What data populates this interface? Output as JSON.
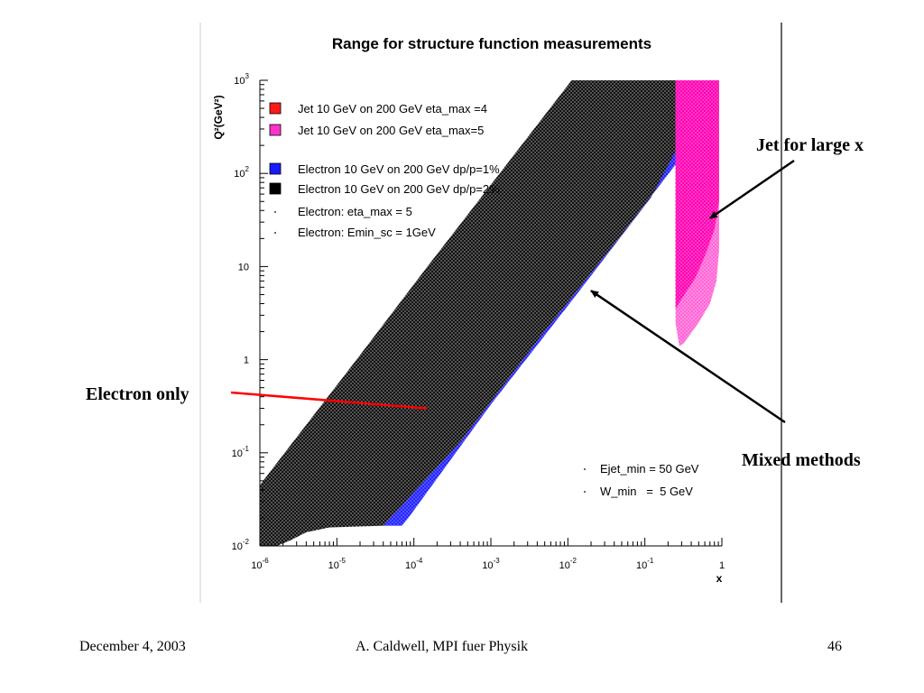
{
  "chart_data": {
    "type": "area",
    "title": "Range for structure function measurements",
    "xlabel": "x",
    "ylabel": "Q²(GeV²)",
    "xscale": "log",
    "yscale": "log",
    "xlim": [
      1e-06,
      1
    ],
    "ylim": [
      0.01,
      1000
    ],
    "grid": false,
    "legend_position": "top-left",
    "x_ticks": [
      {
        "value": 1e-06,
        "base": "10",
        "exp": "-6"
      },
      {
        "value": 1e-05,
        "base": "10",
        "exp": "-5"
      },
      {
        "value": 0.0001,
        "base": "10",
        "exp": "-4"
      },
      {
        "value": 0.001,
        "base": "10",
        "exp": "-3"
      },
      {
        "value": 0.01,
        "base": "10",
        "exp": "-2"
      },
      {
        "value": 0.1,
        "base": "10",
        "exp": "-1"
      },
      {
        "value": 1,
        "base": "1",
        "exp": ""
      }
    ],
    "y_ticks": [
      {
        "value": 0.01,
        "base": "10",
        "exp": "-2"
      },
      {
        "value": 0.1,
        "base": "10",
        "exp": "-1"
      },
      {
        "value": 1,
        "base": "1",
        "exp": ""
      },
      {
        "value": 10,
        "base": "10",
        "exp": ""
      },
      {
        "value": 100,
        "base": "10",
        "exp": "2"
      },
      {
        "value": 1000,
        "base": "10",
        "exp": "3"
      }
    ],
    "legend": [
      {
        "label": "Jet 10 GeV on 200 GeV eta_max =4",
        "color": "#ff1a1a",
        "marker": "box"
      },
      {
        "label": "Jet 10 GeV on 200 GeV eta_max=5",
        "color": "#ff33cc",
        "marker": "box"
      },
      {
        "label": "Electron 10 GeV on 200 GeV dp/p=1%",
        "color": "#1a1aff",
        "marker": "box"
      },
      {
        "label": "Electron 10 GeV on 200 GeV dp/p=2%",
        "color": "#000000",
        "marker": "box"
      },
      {
        "label": "Electron: eta_max = 5",
        "color": "#000000",
        "marker": "dot"
      },
      {
        "label": "Electron: Emin_sc = 1GeV",
        "color": "#000000",
        "marker": "dot"
      }
    ],
    "cuts_legend": [
      {
        "label": "Ejet_min = 50 GeV"
      },
      {
        "label": "W_min   =  5 GeV"
      }
    ],
    "regions": [
      {
        "id": "electron-dp-2pct",
        "color": "#1a1a1a",
        "polygon": [
          [
            1e-06,
            0.01
          ],
          [
            1.66e-06,
            0.01
          ],
          [
            2.5e-06,
            0.0115
          ],
          [
            4e-06,
            0.014
          ],
          [
            8e-06,
            0.0158
          ],
          [
            4e-05,
            0.0165
          ],
          [
            0.0004,
            0.13
          ],
          [
            0.0045,
            1.8
          ],
          [
            0.05,
            22
          ],
          [
            0.25,
            125
          ],
          [
            0.25,
            1000
          ],
          [
            0.0112,
            1000
          ],
          [
            0.0013,
            100
          ],
          [
            0.00015,
            10
          ],
          [
            1.8e-05,
            1
          ],
          [
            2.1e-06,
            0.1
          ],
          [
            1e-06,
            0.045
          ]
        ]
      },
      {
        "id": "electron-dp-1pct",
        "color": "#2b2bff",
        "polygon": [
          [
            4e-05,
            0.0165
          ],
          [
            7e-05,
            0.0165
          ],
          [
            8.5e-05,
            0.02
          ],
          [
            0.001,
            0.33
          ],
          [
            0.011,
            4.2
          ],
          [
            0.12,
            55
          ],
          [
            0.3,
            230
          ],
          [
            0.3,
            160
          ],
          [
            0.25,
            125
          ],
          [
            0.05,
            22
          ],
          [
            0.0045,
            1.8
          ],
          [
            0.0004,
            0.13
          ]
        ]
      },
      {
        "id": "jet-eta-5",
        "color": "#ff77dd",
        "polygon": [
          [
            0.25,
            1000
          ],
          [
            0.92,
            1000
          ],
          [
            0.92,
            15
          ],
          [
            0.85,
            7
          ],
          [
            0.7,
            4
          ],
          [
            0.5,
            2.5
          ],
          [
            0.32,
            1.5
          ],
          [
            0.28,
            1.4
          ],
          [
            0.25,
            2.5
          ]
        ]
      },
      {
        "id": "jet-eta-4",
        "color": "#ff00bb",
        "polygon": [
          [
            0.25,
            1000
          ],
          [
            0.92,
            1000
          ],
          [
            0.92,
            50
          ],
          [
            0.8,
            25
          ],
          [
            0.6,
            13
          ],
          [
            0.45,
            7.5
          ],
          [
            0.3,
            4.5
          ],
          [
            0.25,
            3.5
          ]
        ]
      }
    ],
    "annotations": [
      {
        "id": "jet-large-x",
        "text": "Jet for large x",
        "target": [
          0.7,
          33
        ]
      },
      {
        "id": "mixed-methods",
        "text": "Mixed methods",
        "target": [
          0.02,
          5.5
        ]
      },
      {
        "id": "electron-only",
        "text": "Electron only",
        "target": [
          0.00015,
          0.3
        ]
      }
    ]
  },
  "footer": {
    "date": "December 4, 2003",
    "author": "A. Caldwell, MPI fuer Physik",
    "page": "46"
  }
}
